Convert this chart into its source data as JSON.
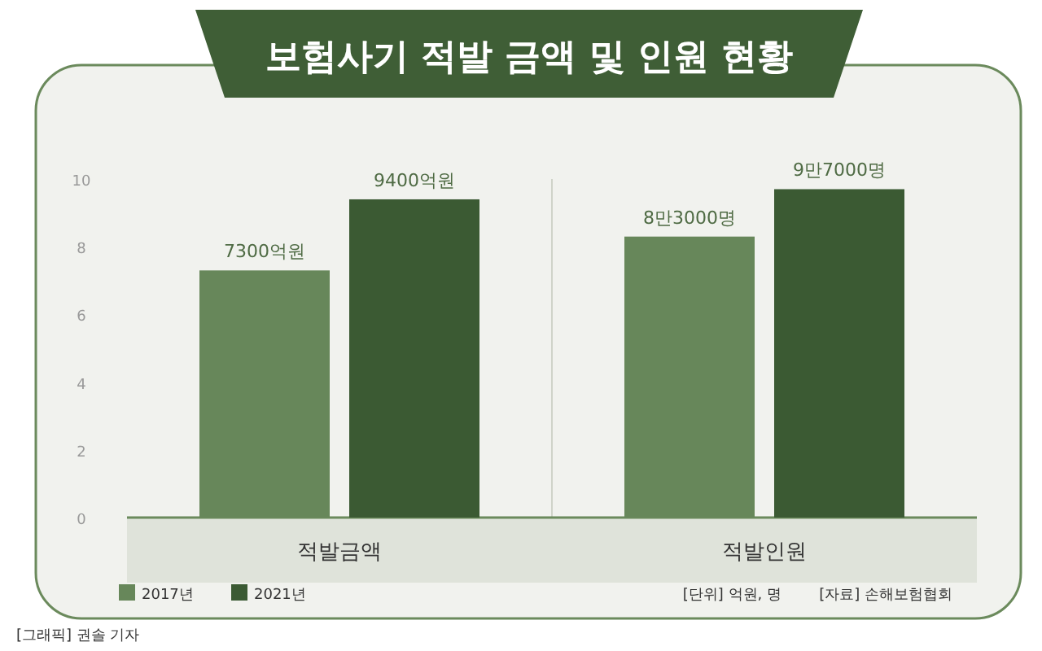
{
  "chart_data": {
    "type": "bar",
    "title": "보험사기 적발 금액 및 인원 현황",
    "categories": [
      "적발금액",
      "적발인원"
    ],
    "series": [
      {
        "name": "2017년",
        "color": "#67875a",
        "values": [
          7.3,
          8.3
        ]
      },
      {
        "name": "2021년",
        "color": "#3b5a33",
        "values": [
          9.4,
          9.7
        ]
      }
    ],
    "ylim": [
      0,
      10
    ],
    "yticks": [
      0,
      2,
      4,
      6,
      8,
      10
    ],
    "legend": "bottom left",
    "annotations": [
      "7300억원",
      "9400억원",
      "8만3000명",
      "9만7000명",
      "[단위] 억원, 명",
      "[자료] 손해보험협회",
      "[그래픽] 권솔 기자"
    ]
  }
}
